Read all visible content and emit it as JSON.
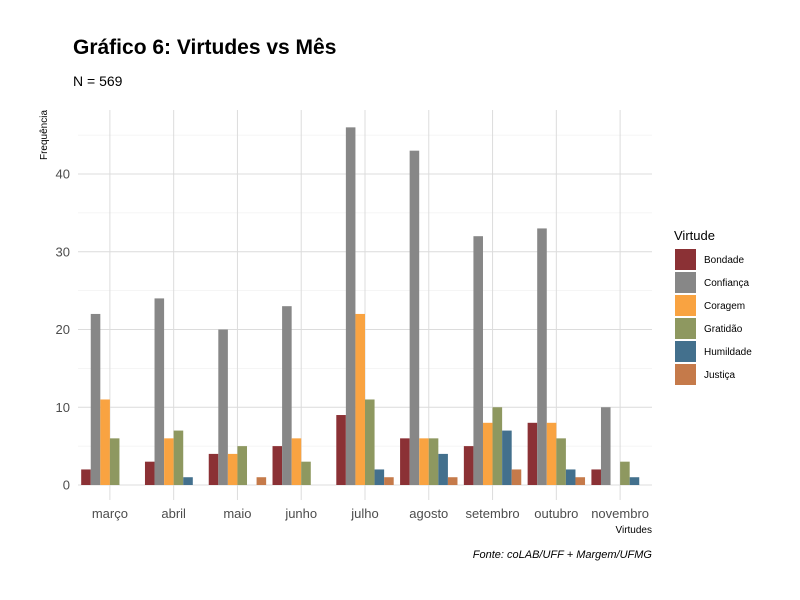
{
  "chart_data": {
    "type": "bar",
    "title": "Gráfico 6: Virtudes vs Mês",
    "subtitle": "N = 569",
    "xlabel": "Virtudes",
    "ylabel": "Frequência",
    "caption": "Fonte: coLAB/UFF + Margem/UFMG",
    "legend_title": "Virtude",
    "legend_position": "right",
    "grid": true,
    "ylim": [
      0,
      47
    ],
    "yticks": [
      0,
      10,
      20,
      30,
      40
    ],
    "categories": [
      "março",
      "abril",
      "maio",
      "junho",
      "julho",
      "agosto",
      "setembro",
      "outubro",
      "novembro"
    ],
    "series": [
      {
        "name": "Bondade",
        "color": "#8B3135",
        "values": [
          2,
          3,
          4,
          5,
          9,
          6,
          5,
          8,
          2
        ]
      },
      {
        "name": "Confiança",
        "color": "#878787",
        "values": [
          22,
          24,
          20,
          23,
          46,
          43,
          32,
          33,
          10
        ]
      },
      {
        "name": "Coragem",
        "color": "#F9A341",
        "values": [
          11,
          6,
          4,
          6,
          22,
          6,
          8,
          8,
          0
        ]
      },
      {
        "name": "Gratidão",
        "color": "#8E9860",
        "values": [
          6,
          7,
          5,
          3,
          11,
          6,
          10,
          6,
          3
        ]
      },
      {
        "name": "Humildade",
        "color": "#43708D",
        "values": [
          0,
          1,
          0,
          0,
          2,
          4,
          7,
          2,
          1
        ]
      },
      {
        "name": "Justiça",
        "color": "#C57A4A",
        "values": [
          0,
          0,
          1,
          0,
          1,
          1,
          2,
          1,
          0
        ]
      }
    ]
  }
}
